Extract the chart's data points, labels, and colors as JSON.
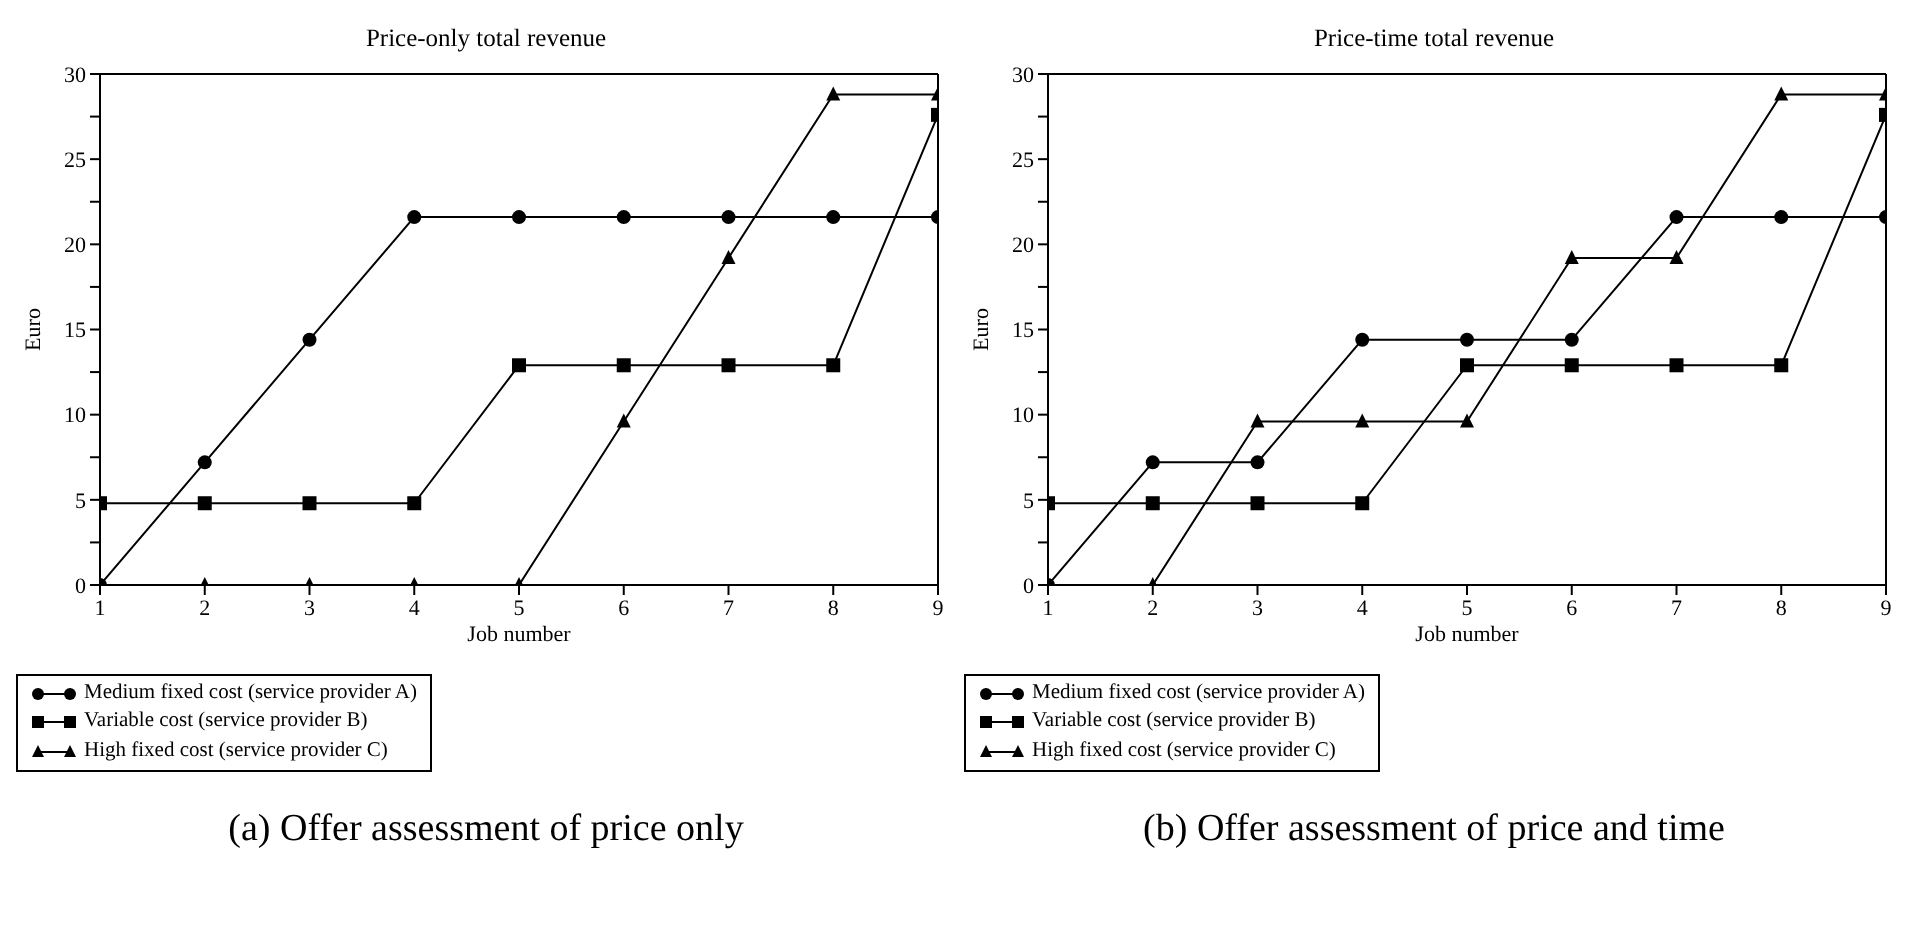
{
  "chart_data": [
    {
      "type": "line",
      "title": "Price-only total revenue",
      "xlabel": "Job number",
      "ylabel": "Euro",
      "x": [
        1,
        2,
        3,
        4,
        5,
        6,
        7,
        8,
        9
      ],
      "xlim": [
        1,
        9
      ],
      "xticks": [
        1,
        2,
        3,
        4,
        5,
        6,
        7,
        8,
        9
      ],
      "ylim": [
        0,
        30
      ],
      "yticks": [
        0,
        {
          "value": 2.5,
          "label": null
        },
        5,
        {
          "value": 7.5,
          "label": null
        },
        10,
        {
          "value": 12.5,
          "label": null
        },
        15,
        {
          "value": 17.5,
          "label": null
        },
        20,
        {
          "value": 22.5,
          "label": null
        },
        25,
        {
          "value": 27.5,
          "label": null
        },
        30
      ],
      "legend": "bottom",
      "line_style": "solid",
      "series": [
        {
          "name": "Medium fixed cost (service provider A)",
          "color": "#000000",
          "marker": "circle",
          "values": [
            0,
            7.2,
            14.4,
            21.6,
            21.6,
            21.6,
            21.6,
            21.6,
            21.6
          ]
        },
        {
          "name": "Variable cost (service provider B)",
          "color": "#000000",
          "marker": "square",
          "values": [
            4.8,
            4.8,
            4.8,
            4.8,
            12.9,
            12.9,
            12.9,
            12.9,
            27.6
          ]
        },
        {
          "name": "High fixed cost (service provider C)",
          "color": "#000000",
          "marker": "triangle",
          "values": [
            0,
            0,
            0,
            0,
            0,
            9.6,
            19.2,
            28.8,
            28.8
          ]
        }
      ],
      "annotations": [
        "(a) Offer assessment of price only"
      ]
    },
    {
      "type": "line",
      "title": "Price-time total revenue",
      "xlabel": "Job number",
      "ylabel": "Euro",
      "x": [
        1,
        2,
        3,
        4,
        5,
        6,
        7,
        8,
        9
      ],
      "xlim": [
        1,
        9
      ],
      "xticks": [
        1,
        2,
        3,
        4,
        5,
        6,
        7,
        8,
        9
      ],
      "ylim": [
        0,
        30
      ],
      "yticks": [
        0,
        {
          "value": 2.5,
          "label": null
        },
        5,
        {
          "value": 7.5,
          "label": null
        },
        10,
        {
          "value": 12.5,
          "label": null
        },
        15,
        {
          "value": 17.5,
          "label": null
        },
        20,
        {
          "value": 22.5,
          "label": null
        },
        25,
        {
          "value": 27.5,
          "label": null
        },
        30
      ],
      "legend": "bottom",
      "line_style": "solid",
      "series": [
        {
          "name": "Medium fixed cost (service provider A)",
          "color": "#000000",
          "marker": "circle",
          "values": [
            0,
            7.2,
            7.2,
            14.4,
            14.4,
            14.4,
            21.6,
            21.6,
            21.6
          ]
        },
        {
          "name": "Variable cost (service provider B)",
          "color": "#000000",
          "marker": "square",
          "values": [
            4.8,
            4.8,
            4.8,
            4.8,
            12.9,
            12.9,
            12.9,
            12.9,
            27.6
          ]
        },
        {
          "name": "High fixed cost (service provider C)",
          "color": "#000000",
          "marker": "triangle",
          "values": [
            0,
            0,
            9.6,
            9.6,
            9.6,
            19.2,
            19.2,
            28.8,
            28.8
          ]
        }
      ],
      "annotations": [
        "(b) Offer assessment of price and time"
      ]
    }
  ]
}
